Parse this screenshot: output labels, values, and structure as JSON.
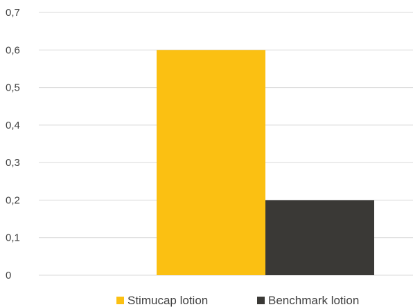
{
  "chart_data": {
    "type": "bar",
    "categories": [
      ""
    ],
    "series": [
      {
        "name": "Stimucap lotion",
        "values": [
          0.6
        ],
        "color": "#FBC012"
      },
      {
        "name": "Benchmark lotion",
        "values": [
          0.2
        ],
        "color": "#3A3936"
      }
    ],
    "ylim": [
      0,
      0.7
    ],
    "yticks": [
      "0",
      "0,1",
      "0,2",
      "0,3",
      "0,4",
      "0,5",
      "0,6",
      "0,7"
    ],
    "grid": true,
    "legend_position": "bottom-center",
    "gridline_color": "#D9D9D9",
    "tick_color": "#404040"
  }
}
